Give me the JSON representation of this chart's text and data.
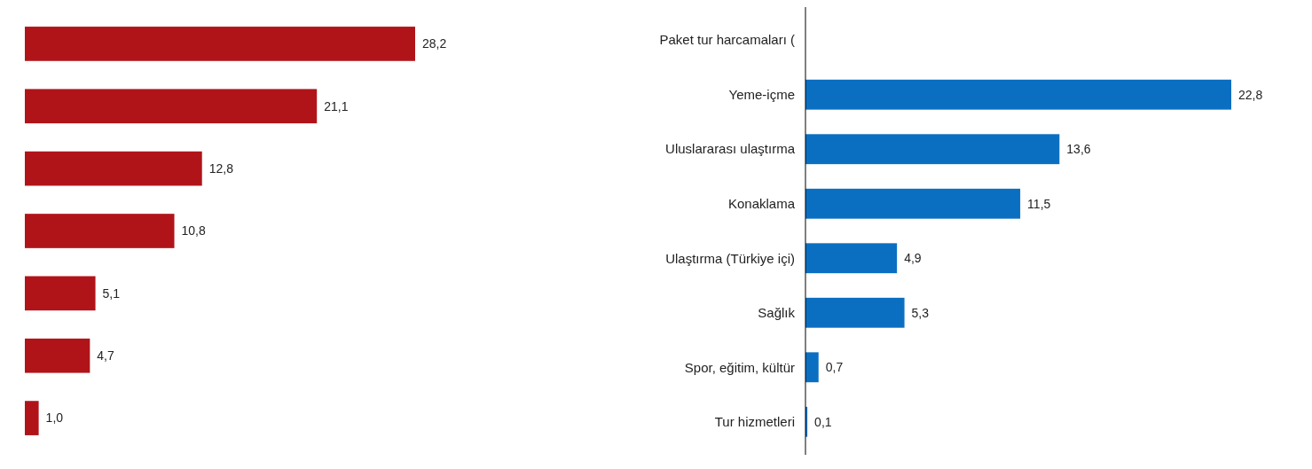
{
  "chart_data": [
    {
      "type": "bar",
      "orientation": "horizontal",
      "categories": [
        null,
        null,
        null,
        null,
        null,
        null,
        null
      ],
      "values": [
        28.2,
        21.1,
        12.8,
        10.8,
        5.1,
        4.7,
        1.0
      ],
      "value_labels": [
        "28,2",
        "21,1",
        "12,8",
        "10,8",
        "5,1",
        "4,7",
        "1,0"
      ],
      "color": "#b01419"
    },
    {
      "type": "bar",
      "orientation": "horizontal",
      "categories": [
        "Paket tur harcamaları (",
        "Yeme-içme",
        "Uluslararası ulaştırma",
        "Konaklama",
        "Ulaştırma (Türkiye içi)",
        "Sağlık",
        "Spor, eğitim, kültür",
        "Tur hizmetleri"
      ],
      "values": [
        null,
        22.8,
        13.6,
        11.5,
        4.9,
        5.3,
        0.7,
        0.1
      ],
      "value_labels": [
        null,
        "22,8",
        "13,6",
        "11,5",
        "4,9",
        "5,3",
        "0,7",
        "0,1"
      ],
      "color": "#0b6fc1"
    }
  ]
}
